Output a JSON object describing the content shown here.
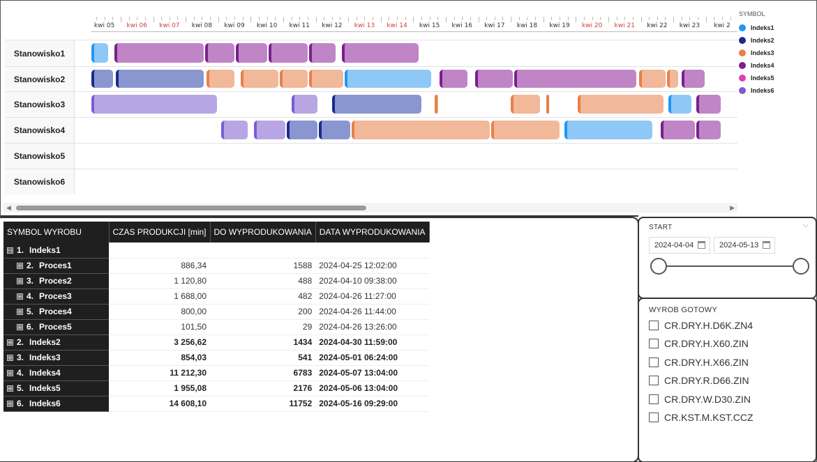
{
  "gantt": {
    "timeline_labels": [
      {
        "text": "kwi 05",
        "weekend": false
      },
      {
        "text": "kwi 06",
        "weekend": true
      },
      {
        "text": "kwi 07",
        "weekend": true
      },
      {
        "text": "kwi 08",
        "weekend": false
      },
      {
        "text": "kwi 09",
        "weekend": false
      },
      {
        "text": "kwi 10",
        "weekend": false
      },
      {
        "text": "kwi 11",
        "weekend": false
      },
      {
        "text": "kwi 12",
        "weekend": false
      },
      {
        "text": "kwi 13",
        "weekend": true
      },
      {
        "text": "kwi 14",
        "weekend": true
      },
      {
        "text": "kwi 15",
        "weekend": false
      },
      {
        "text": "kwi 16",
        "weekend": false
      },
      {
        "text": "kwi 17",
        "weekend": false
      },
      {
        "text": "kwi 18",
        "weekend": false
      },
      {
        "text": "kwi 19",
        "weekend": false
      },
      {
        "text": "kwi 20",
        "weekend": true
      },
      {
        "text": "kwi 21",
        "weekend": true
      },
      {
        "text": "kwi 22",
        "weekend": false
      },
      {
        "text": "kwi 23",
        "weekend": false
      },
      {
        "text": "kwi 2",
        "weekend": false
      }
    ],
    "rows": [
      {
        "label": "Stanowisko1",
        "bars": [
          {
            "start": 4.6,
            "end": 5.15,
            "symbol": "Indeks1"
          },
          {
            "start": 5.3,
            "end": 8.1,
            "symbol": "Indeks4"
          },
          {
            "start": 8.1,
            "end": 9.05,
            "symbol": "Indeks4"
          },
          {
            "start": 9.05,
            "end": 10.05,
            "symbol": "Indeks4"
          },
          {
            "start": 10.05,
            "end": 11.3,
            "symbol": "Indeks4"
          },
          {
            "start": 11.3,
            "end": 12.15,
            "symbol": "Indeks4"
          },
          {
            "start": 12.3,
            "end": 14.7,
            "symbol": "Indeks4"
          }
        ]
      },
      {
        "label": "Stanowisko2",
        "bars": [
          {
            "start": 4.6,
            "end": 5.3,
            "symbol": "Indeks2"
          },
          {
            "start": 5.35,
            "end": 8.1,
            "symbol": "Indeks2"
          },
          {
            "start": 8.15,
            "end": 9.05,
            "symbol": "Indeks3"
          },
          {
            "start": 9.2,
            "end": 10.4,
            "symbol": "Indeks3"
          },
          {
            "start": 10.4,
            "end": 11.3,
            "symbol": "Indeks3"
          },
          {
            "start": 11.3,
            "end": 12.4,
            "symbol": "Indeks3"
          },
          {
            "start": 12.4,
            "end": 15.1,
            "symbol": "Indeks1"
          },
          {
            "start": 15.3,
            "end": 16.2,
            "symbol": "Indeks4"
          },
          {
            "start": 16.4,
            "end": 17.6,
            "symbol": "Indeks4"
          },
          {
            "start": 17.6,
            "end": 21.4,
            "symbol": "Indeks4"
          },
          {
            "start": 21.45,
            "end": 22.3,
            "symbol": "Indeks3"
          },
          {
            "start": 22.3,
            "end": 22.7,
            "symbol": "Indeks3"
          },
          {
            "start": 22.75,
            "end": 23.5,
            "symbol": "Indeks4"
          }
        ]
      },
      {
        "label": "Stanowisko3",
        "bars": [
          {
            "start": 4.6,
            "end": 8.5,
            "symbol": "Indeks6"
          },
          {
            "start": 10.75,
            "end": 11.6,
            "symbol": "Indeks6"
          },
          {
            "start": 12.0,
            "end": 14.8,
            "symbol": "Indeks2"
          },
          {
            "start": 15.15,
            "end": 15.3,
            "symbol": "Indeks3"
          },
          {
            "start": 17.5,
            "end": 18.45,
            "symbol": "Indeks3"
          },
          {
            "start": 18.6,
            "end": 18.7,
            "symbol": "Indeks3"
          },
          {
            "start": 19.55,
            "end": 22.25,
            "symbol": "Indeks3"
          },
          {
            "start": 22.35,
            "end": 23.1,
            "symbol": "Indeks1"
          },
          {
            "start": 23.2,
            "end": 24.0,
            "symbol": "Indeks4"
          }
        ]
      },
      {
        "label": "Stanowisko4",
        "bars": [
          {
            "start": 8.6,
            "end": 9.45,
            "symbol": "Indeks6"
          },
          {
            "start": 9.6,
            "end": 10.6,
            "symbol": "Indeks6"
          },
          {
            "start": 10.6,
            "end": 11.6,
            "symbol": "Indeks2"
          },
          {
            "start": 11.6,
            "end": 12.6,
            "symbol": "Indeks2"
          },
          {
            "start": 12.6,
            "end": 16.9,
            "symbol": "Indeks3"
          },
          {
            "start": 16.9,
            "end": 19.05,
            "symbol": "Indeks3"
          },
          {
            "start": 19.15,
            "end": 21.9,
            "symbol": "Indeks1"
          },
          {
            "start": 22.1,
            "end": 23.2,
            "symbol": "Indeks4"
          },
          {
            "start": 23.2,
            "end": 24.0,
            "symbol": "Indeks4"
          }
        ]
      },
      {
        "label": "Stanowisko5",
        "bars": []
      },
      {
        "label": "Stanowisko6",
        "bars": []
      }
    ]
  },
  "legend": {
    "title": "SYMBOL",
    "items": [
      {
        "name": "Indeks1",
        "color": "#2196f3"
      },
      {
        "name": "Indeks2",
        "color": "#1a2a8c"
      },
      {
        "name": "Indeks3",
        "color": "#e8804a"
      },
      {
        "name": "Indeks4",
        "color": "#7b1f8c"
      },
      {
        "name": "Indeks5",
        "color": "#e040b0"
      },
      {
        "name": "Indeks6",
        "color": "#7b5cd6"
      }
    ]
  },
  "bar_colors": {
    "Indeks1": "#8ec8f6",
    "Indeks2": "#8a96d0",
    "Indeks3": "#f2b89a",
    "Indeks4": "#bf85c6",
    "Indeks5": "#ee9fd0",
    "Indeks6": "#b8a6e4"
  },
  "table": {
    "headers": [
      "SYMBOL WYROBU",
      "CZAS PRODUKCJI [min]",
      "DO WYPRODUKOWANIA",
      "DATA WYPRODUKOWANIA"
    ],
    "rows": [
      {
        "expander": "⊟",
        "num": "1.",
        "name": "Indeks1",
        "czas": "",
        "do": "",
        "data": "",
        "sub": false,
        "bold": true
      },
      {
        "expander": "⊞",
        "num": "2.",
        "name": "Proces1",
        "czas": "886,34",
        "do": "1588",
        "data": "2024-04-25 12:02:00",
        "sub": true,
        "bold": false
      },
      {
        "expander": "⊞",
        "num": "3.",
        "name": "Proces2",
        "czas": "1 120,80",
        "do": "488",
        "data": "2024-04-10 09:38:00",
        "sub": true,
        "bold": false
      },
      {
        "expander": "⊞",
        "num": "4.",
        "name": "Proces3",
        "czas": "1 688,00",
        "do": "482",
        "data": "2024-04-26 11:27:00",
        "sub": true,
        "bold": false
      },
      {
        "expander": "⊞",
        "num": "5.",
        "name": "Proces4",
        "czas": "800,00",
        "do": "200",
        "data": "2024-04-26 11:44:00",
        "sub": true,
        "bold": false
      },
      {
        "expander": "⊞",
        "num": "6.",
        "name": "Proces5",
        "czas": "101,50",
        "do": "29",
        "data": "2024-04-26 13:26:00",
        "sub": true,
        "bold": false
      },
      {
        "expander": "⊞",
        "num": "2.",
        "name": "Indeks2",
        "czas": "3 256,62",
        "do": "1434",
        "data": "2024-04-30 11:59:00",
        "sub": false,
        "bold": true
      },
      {
        "expander": "⊞",
        "num": "3.",
        "name": "Indeks3",
        "czas": "854,03",
        "do": "541",
        "data": "2024-05-01 06:24:00",
        "sub": false,
        "bold": true
      },
      {
        "expander": "⊞",
        "num": "4.",
        "name": "Indeks4",
        "czas": "11 212,30",
        "do": "6783",
        "data": "2024-05-07 13:04:00",
        "sub": false,
        "bold": true
      },
      {
        "expander": "⊞",
        "num": "5.",
        "name": "Indeks5",
        "czas": "1 955,08",
        "do": "2176",
        "data": "2024-05-06 13:04:00",
        "sub": false,
        "bold": true
      },
      {
        "expander": "⊞",
        "num": "6.",
        "name": "Indeks6",
        "czas": "14 608,10",
        "do": "11752",
        "data": "2024-05-16 09:29:00",
        "sub": false,
        "bold": true
      }
    ]
  },
  "start_filter": {
    "title": "START",
    "from": "2024-04-04",
    "to": "2024-05-13",
    "chevron": "chevron-down-icon"
  },
  "product_filter": {
    "title": "WYROB GOTOWY",
    "options": [
      "CR.DRY.H.D6K.ZN4",
      "CR.DRY.H.X60.ZIN",
      "CR.DRY.H.X66.ZIN",
      "CR.DRY.R.D66.ZIN",
      "CR.DRY.W.D30.ZIN",
      "CR.KST.M.KST.CCZ"
    ]
  }
}
